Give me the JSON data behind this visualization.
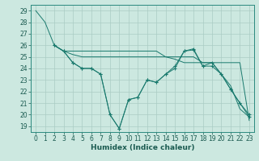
{
  "xlabel": "Humidex (Indice chaleur)",
  "background_color": "#cce8e0",
  "line_color": "#1a7a6e",
  "grid_color": "#aaccc4",
  "xlim": [
    -0.5,
    23.5
  ],
  "ylim": [
    18.5,
    29.5
  ],
  "xticks": [
    0,
    1,
    2,
    3,
    4,
    5,
    6,
    7,
    8,
    9,
    10,
    11,
    12,
    13,
    14,
    15,
    16,
    17,
    18,
    19,
    20,
    21,
    22,
    23
  ],
  "yticks": [
    19,
    20,
    21,
    22,
    23,
    24,
    25,
    26,
    27,
    28,
    29
  ],
  "tick_fontsize": 5.5,
  "xlabel_fontsize": 6.5,
  "lines": [
    {
      "x": [
        0,
        1,
        2,
        3,
        4,
        5,
        6,
        7,
        8,
        9,
        10,
        11,
        12,
        13,
        14,
        15,
        16,
        17,
        18,
        19,
        20,
        21,
        22,
        23
      ],
      "y": [
        29,
        28,
        26,
        25.5,
        25.5,
        25.5,
        25.5,
        25.5,
        25.5,
        25.5,
        25.5,
        25.5,
        25.5,
        25.5,
        25.0,
        25.0,
        25.0,
        25.0,
        24.5,
        24.5,
        24.5,
        24.5,
        24.5,
        19.5
      ],
      "marker": null
    },
    {
      "x": [
        2,
        3,
        4,
        5,
        6,
        7,
        8,
        9,
        10,
        11,
        12,
        13,
        14,
        15,
        16,
        17,
        18,
        19,
        20,
        21,
        22,
        23
      ],
      "y": [
        26,
        25.5,
        24.5,
        24.0,
        24.0,
        23.5,
        20.0,
        18.8,
        21.3,
        21.5,
        23.0,
        22.8,
        23.5,
        24.0,
        25.5,
        25.6,
        24.2,
        24.2,
        23.5,
        22.2,
        21.0,
        20.0
      ],
      "marker": "+"
    },
    {
      "x": [
        2,
        3,
        4,
        5,
        6,
        7,
        8,
        9,
        10,
        11,
        12,
        13,
        14,
        15,
        16,
        17,
        18,
        19,
        20,
        21,
        22,
        23
      ],
      "y": [
        26,
        25.5,
        25.2,
        25.0,
        25.0,
        25.0,
        25.0,
        25.0,
        25.0,
        25.0,
        25.0,
        25.0,
        25.0,
        24.8,
        24.5,
        24.5,
        24.5,
        24.5,
        23.5,
        22.5,
        20.5,
        19.8
      ],
      "marker": null
    },
    {
      "x": [
        2,
        3,
        4,
        5,
        6,
        7,
        8,
        9,
        10,
        11,
        12,
        13,
        14,
        15,
        16,
        17,
        18,
        19,
        20,
        21,
        22,
        23
      ],
      "y": [
        26,
        25.5,
        24.5,
        24.0,
        24.0,
        23.5,
        20.0,
        18.8,
        21.3,
        21.5,
        23.0,
        22.8,
        23.5,
        24.2,
        25.5,
        25.7,
        24.2,
        24.5,
        23.5,
        22.2,
        21.0,
        19.8
      ],
      "marker": "+"
    }
  ]
}
